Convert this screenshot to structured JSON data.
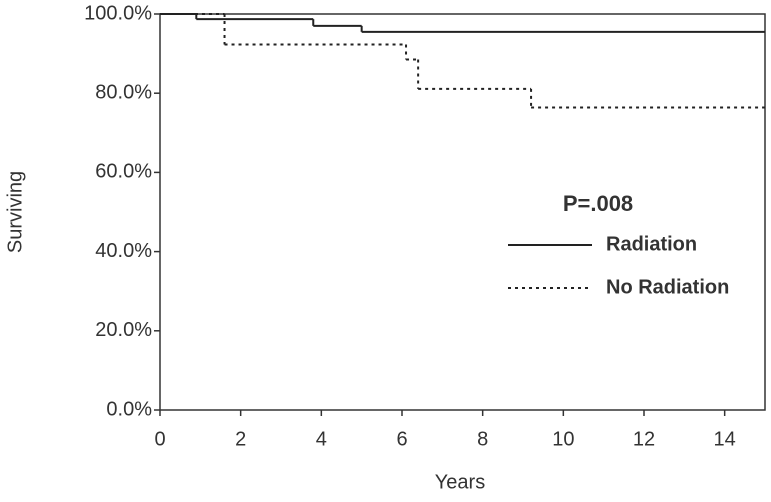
{
  "chart_data": {
    "type": "step",
    "xlabel": "Years",
    "ylabel": "Surviving",
    "annotation": "P=.008",
    "xlim": [
      0,
      15
    ],
    "ylim": [
      0,
      100
    ],
    "xticks": [
      0,
      2,
      4,
      6,
      8,
      10,
      12,
      14
    ],
    "yticks": [
      {
        "value": 0,
        "label": "0.0%"
      },
      {
        "value": 20,
        "label": "20.0%"
      },
      {
        "value": 40,
        "label": "40.0%"
      },
      {
        "value": 60,
        "label": "60.0%"
      },
      {
        "value": 80,
        "label": "80.0%"
      },
      {
        "value": 100,
        "label": "100.0%"
      }
    ],
    "series": [
      {
        "name": "Radiation",
        "color": "#222222",
        "linestyle": "solid",
        "x": [
          0,
          0.9,
          3.8,
          5.0
        ],
        "values": [
          100,
          98.7,
          97.0,
          95.5
        ]
      },
      {
        "name": "No Radiation",
        "color": "#222222",
        "linestyle": "dotted",
        "x": [
          0,
          1.6,
          6.1,
          6.4,
          9.2
        ],
        "values": [
          100,
          92.3,
          88.5,
          81.1,
          76.4
        ]
      }
    ]
  }
}
